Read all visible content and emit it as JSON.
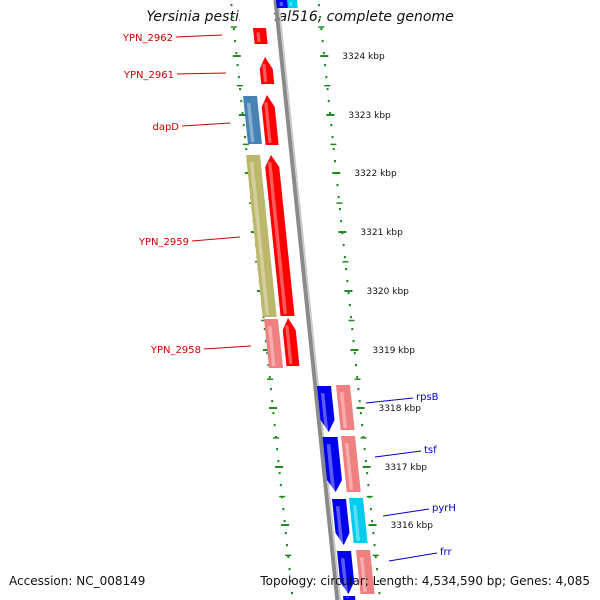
{
  "title": "Yersinia pestis Nepal516, complete genome",
  "accession": "Accession: NC_008149",
  "summary": "Topology: circular; Length: 4,534,590 bp; Genes: 4,085",
  "colors": {
    "backbone": "#8a8a8a",
    "tick": "#1f8a1f",
    "left_label": "#cc0000",
    "right_label": "#0000cc",
    "red_feature": "#ff0000",
    "pink_feature": "#f08080",
    "blue_feature": "#0000ee",
    "steel_blue_feature": "#4682b4",
    "khaki_feature": "#bdb76b",
    "cyan_feature": "#00ccee"
  },
  "scale_unit": "kbp",
  "scale_ticks": [
    {
      "label": "3324 kbp"
    },
    {
      "label": "3323 kbp"
    },
    {
      "label": "3322 kbp"
    },
    {
      "label": "3321 kbp"
    },
    {
      "label": "3320 kbp"
    },
    {
      "label": "3319 kbp"
    },
    {
      "label": "3318 kbp"
    },
    {
      "label": "3317 kbp"
    },
    {
      "label": "3316 kbp"
    }
  ],
  "gene_labels_left": [
    {
      "name": "YPN_2962"
    },
    {
      "name": "YPN_2961"
    },
    {
      "name": "dapD"
    },
    {
      "name": "YPN_2959"
    },
    {
      "name": "YPN_2958"
    }
  ],
  "gene_labels_right": [
    {
      "name": "rpsB"
    },
    {
      "name": "tsf"
    },
    {
      "name": "pyrH"
    },
    {
      "name": "frr"
    }
  ]
}
